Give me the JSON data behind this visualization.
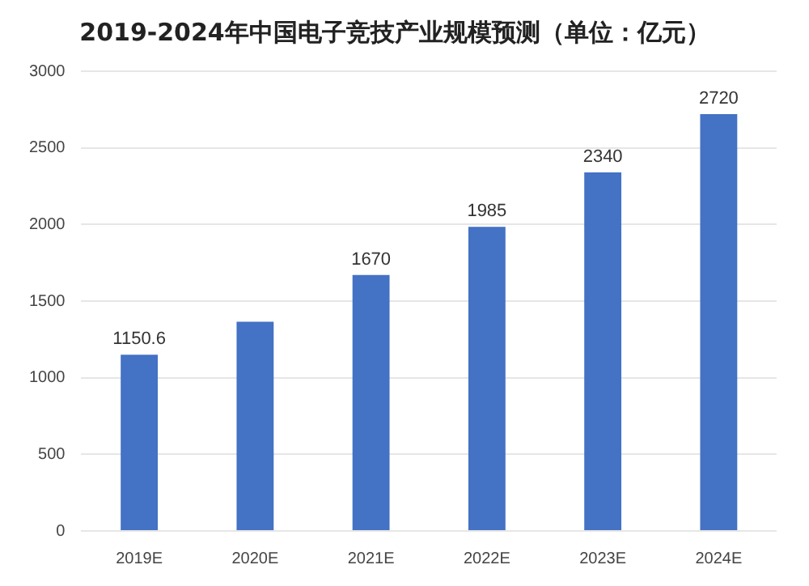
{
  "chart_data": {
    "type": "bar",
    "title": "2019-2024年中国电子竞技产业规模预测（单位：亿元）",
    "categories": [
      "2019E",
      "2020E",
      "2021E",
      "2022E",
      "2023E",
      "2024E"
    ],
    "values": [
      1150.6,
      1365,
      1670,
      1985,
      2340,
      2720
    ],
    "value_labels": [
      "1150.6",
      null,
      "1670",
      "1985",
      "2340",
      "2720"
    ],
    "color": "#4472c4",
    "ylim": [
      0,
      3000
    ],
    "yticks": [
      0,
      500,
      1000,
      1500,
      2000,
      2500,
      3000
    ],
    "grid": "y",
    "legend": false
  }
}
